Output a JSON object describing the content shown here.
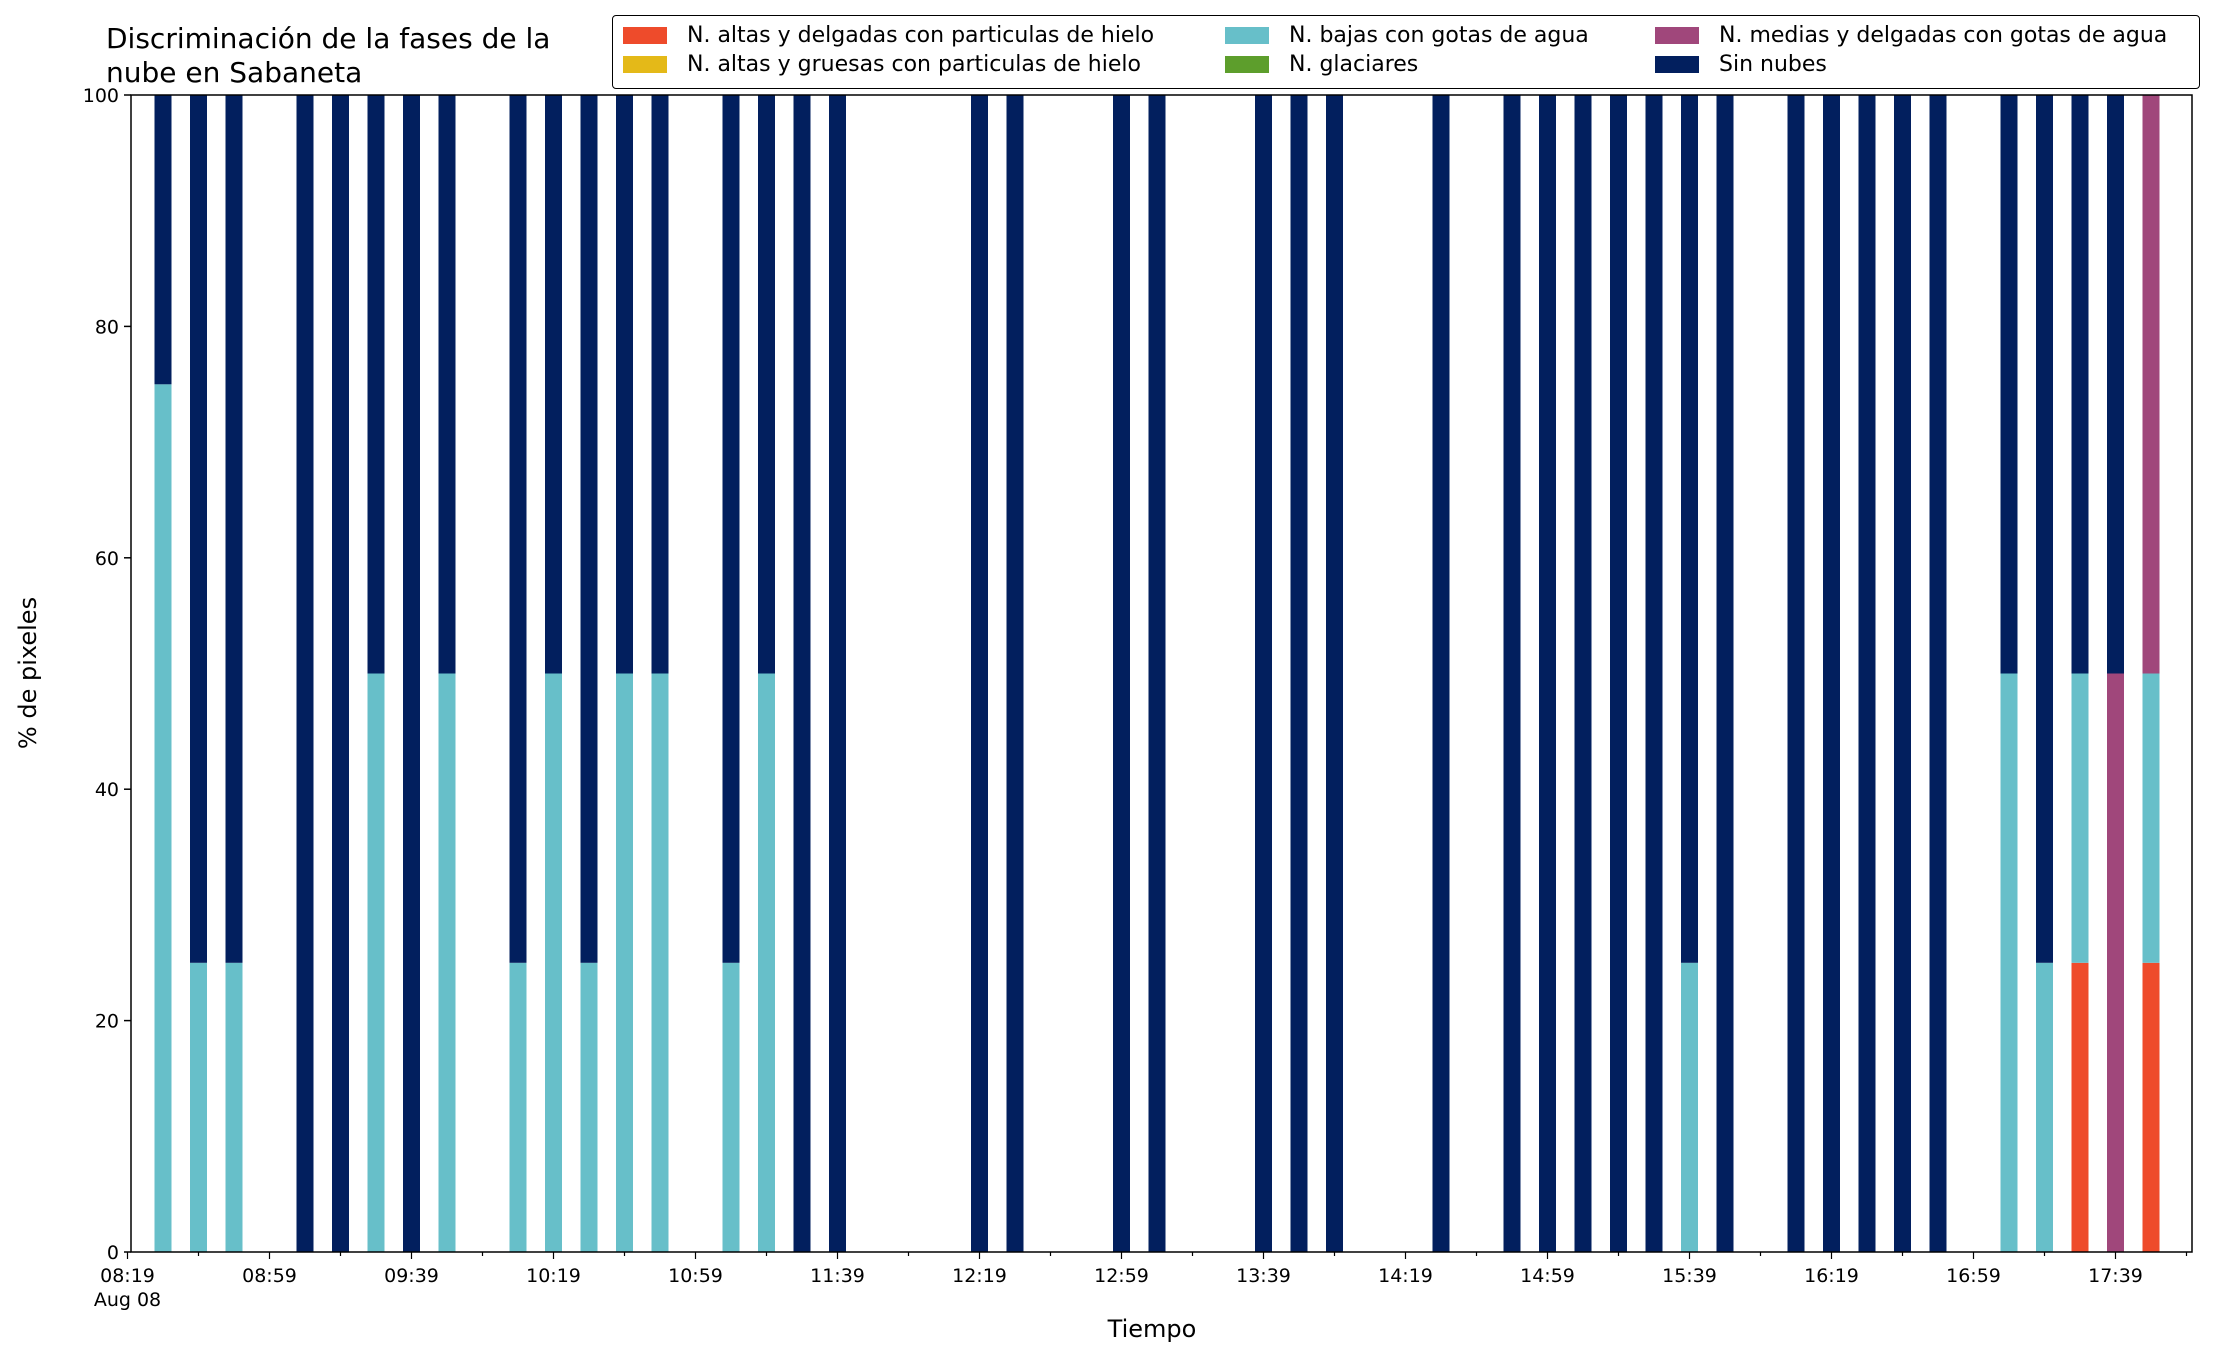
{
  "chart_data": {
    "type": "bar",
    "stacked": true,
    "title": "Discriminación de la fases de la\nnube en Sabaneta",
    "xlabel": "Tiempo",
    "ylabel": "% de pixeles",
    "ylim": [
      0,
      100
    ],
    "grid": false,
    "legend_position": "top-right",
    "yticks": [
      "0",
      "20",
      "40",
      "60",
      "80",
      "100"
    ],
    "xticks": [
      "08:19\nAug 08",
      "08:59",
      "09:39",
      "10:19",
      "10:59",
      "11:39",
      "12:19",
      "12:59",
      "13:39",
      "14:19",
      "14:59",
      "15:39",
      "16:19",
      "16:59",
      "17:39"
    ],
    "xstart": "08:19",
    "interval_minutes": 10,
    "categories": [
      "08:29",
      "08:39",
      "08:49",
      "08:59",
      "09:09",
      "09:19",
      "09:29",
      "09:39",
      "09:49",
      "09:59",
      "10:09",
      "10:19",
      "10:29",
      "10:39",
      "10:49",
      "10:59",
      "11:09",
      "11:19",
      "11:29",
      "11:39",
      "11:49",
      "11:59",
      "12:09",
      "12:19",
      "12:29",
      "12:39",
      "12:49",
      "12:59",
      "13:09",
      "13:19",
      "13:29",
      "13:39",
      "13:49",
      "13:59",
      "14:09",
      "14:19",
      "14:29",
      "14:39",
      "14:49",
      "14:59",
      "15:09",
      "15:19",
      "15:29",
      "15:39",
      "15:49",
      "15:59",
      "16:09",
      "16:19",
      "16:29",
      "16:39",
      "16:49",
      "16:59",
      "17:09",
      "17:19",
      "17:29",
      "17:39",
      "17:49"
    ],
    "series": [
      {
        "name": "N. altas y delgadas con particulas de hielo",
        "color": "#ee4b2b",
        "values": [
          0,
          0,
          0,
          0,
          0,
          0,
          0,
          0,
          0,
          0,
          0,
          0,
          0,
          0,
          0,
          0,
          0,
          0,
          0,
          0,
          0,
          0,
          0,
          0,
          0,
          0,
          0,
          0,
          0,
          0,
          0,
          0,
          0,
          0,
          0,
          0,
          0,
          0,
          0,
          0,
          0,
          0,
          0,
          0,
          0,
          0,
          0,
          0,
          0,
          0,
          0,
          0,
          0,
          0,
          25,
          0,
          25
        ]
      },
      {
        "name": "N. altas y gruesas con particulas de hielo",
        "color": "#e4b918",
        "values": [
          0,
          0,
          0,
          0,
          0,
          0,
          0,
          0,
          0,
          0,
          0,
          0,
          0,
          0,
          0,
          0,
          0,
          0,
          0,
          0,
          0,
          0,
          0,
          0,
          0,
          0,
          0,
          0,
          0,
          0,
          0,
          0,
          0,
          0,
          0,
          0,
          0,
          0,
          0,
          0,
          0,
          0,
          0,
          0,
          0,
          0,
          0,
          0,
          0,
          0,
          0,
          0,
          0,
          0,
          0,
          0,
          0
        ]
      },
      {
        "name": "N. bajas con gotas de agua",
        "color": "#67bfc9",
        "values": [
          75,
          25,
          25,
          0,
          0,
          0,
          50,
          0,
          50,
          0,
          25,
          50,
          25,
          50,
          50,
          0,
          25,
          50,
          0,
          0,
          0,
          0,
          0,
          0,
          0,
          0,
          0,
          0,
          0,
          0,
          0,
          0,
          0,
          0,
          0,
          0,
          0,
          0,
          0,
          0,
          0,
          0,
          0,
          25,
          0,
          0,
          0,
          0,
          0,
          0,
          0,
          0,
          50,
          25,
          25,
          0,
          25
        ]
      },
      {
        "name": "N. glaciares",
        "color": "#5d9e2c",
        "values": [
          0,
          0,
          0,
          0,
          0,
          0,
          0,
          0,
          0,
          0,
          0,
          0,
          0,
          0,
          0,
          0,
          0,
          0,
          0,
          0,
          0,
          0,
          0,
          0,
          0,
          0,
          0,
          0,
          0,
          0,
          0,
          0,
          0,
          0,
          0,
          0,
          0,
          0,
          0,
          0,
          0,
          0,
          0,
          0,
          0,
          0,
          0,
          0,
          0,
          0,
          0,
          0,
          0,
          0,
          0,
          0,
          0
        ]
      },
      {
        "name": "N. medias y delgadas con gotas de agua",
        "color": "#a0477b",
        "values": [
          0,
          0,
          0,
          0,
          0,
          0,
          0,
          0,
          0,
          0,
          0,
          0,
          0,
          0,
          0,
          0,
          0,
          0,
          0,
          0,
          0,
          0,
          0,
          0,
          0,
          0,
          0,
          0,
          0,
          0,
          0,
          0,
          0,
          0,
          0,
          0,
          0,
          0,
          0,
          0,
          0,
          0,
          0,
          0,
          0,
          0,
          0,
          0,
          0,
          0,
          0,
          0,
          0,
          0,
          0,
          50,
          50
        ]
      },
      {
        "name": "Sin nubes",
        "color": "#021f5e",
        "values": [
          25,
          75,
          75,
          0,
          100,
          100,
          50,
          100,
          50,
          0,
          75,
          50,
          75,
          50,
          50,
          0,
          75,
          50,
          100,
          100,
          0,
          0,
          0,
          100,
          100,
          0,
          0,
          100,
          100,
          0,
          0,
          100,
          100,
          100,
          0,
          0,
          100,
          0,
          100,
          100,
          100,
          100,
          100,
          75,
          100,
          0,
          100,
          100,
          100,
          100,
          100,
          0,
          50,
          75,
          50,
          50,
          0
        ]
      }
    ]
  }
}
